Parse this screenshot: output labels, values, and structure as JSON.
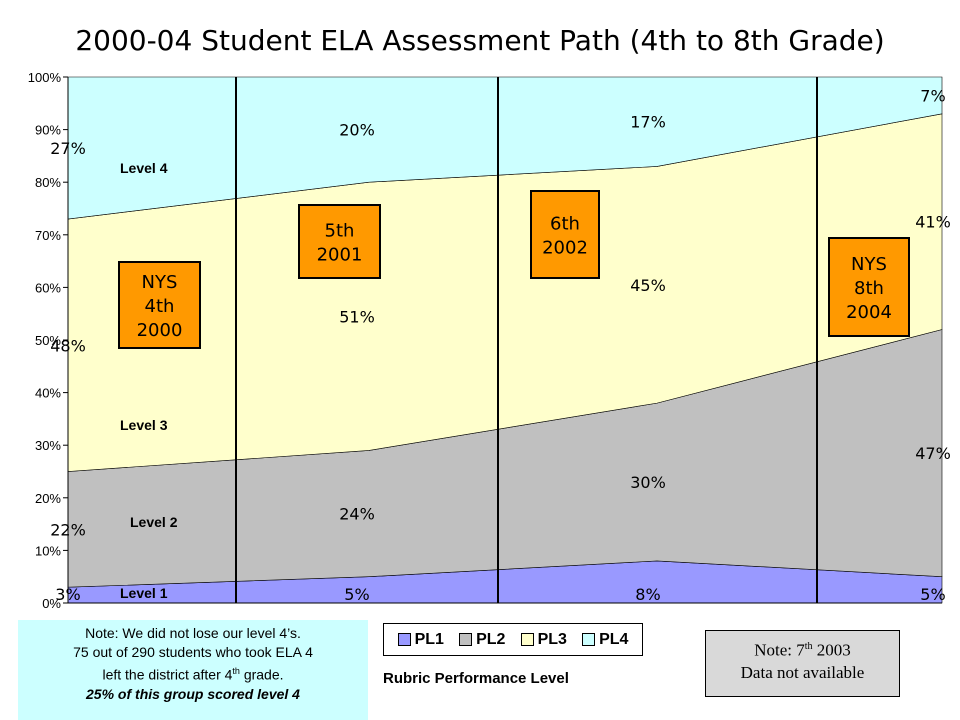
{
  "chart_data": {
    "type": "area",
    "title": "2000-04 Student ELA Assessment Path (4th to 8th Grade)",
    "stacked": true,
    "x": [
      "2000",
      "2001",
      "2002",
      "2004"
    ],
    "ylim": [
      0,
      100
    ],
    "yticks": [
      "0%",
      "10%",
      "20%",
      "30%",
      "40%",
      "50%",
      "60%",
      "70%",
      "80%",
      "90%",
      "100%"
    ],
    "series": [
      {
        "name": "PL1",
        "values": [
          3,
          5,
          8,
          5
        ],
        "labels": [
          "3%",
          "5%",
          "8%",
          "5%"
        ],
        "color": "#9999ff"
      },
      {
        "name": "PL2",
        "values": [
          22,
          24,
          30,
          47
        ],
        "labels": [
          "22%",
          "24%",
          "30%",
          "47%"
        ],
        "color": "#c0c0c0"
      },
      {
        "name": "PL3",
        "values": [
          48,
          51,
          45,
          41
        ],
        "labels": [
          "48%",
          "51%",
          "45%",
          "41%"
        ],
        "color": "#ffffcc"
      },
      {
        "name": "PL4",
        "values": [
          27,
          20,
          17,
          7
        ],
        "labels": [
          "27%",
          "20%",
          "17%",
          "7%"
        ],
        "color": "#ccffff"
      }
    ],
    "level_labels": [
      "Level 4",
      "Level 3",
      "Level 2",
      "Level 1"
    ],
    "grade_boxes": [
      {
        "lines": [
          "NYS",
          "4th",
          "2000"
        ]
      },
      {
        "lines": [
          "5th",
          "2001"
        ]
      },
      {
        "lines": [
          "6th",
          "2002"
        ]
      },
      {
        "lines": [
          "NYS",
          "8th",
          "2004"
        ]
      }
    ],
    "legend_position": "bottom"
  },
  "note_left": {
    "line1": "Note: We did not lose our level 4’s.",
    "line2": "75 out of 290 students who took ELA 4",
    "line3_pre": "left the district after 4",
    "line3_sup": "th",
    "line3_post": " grade.",
    "line4": "25% of this group scored level 4"
  },
  "legend_title": "Rubric Performance Level",
  "note_right": {
    "line1_pre": "Note: 7",
    "line1_sup": "th",
    "line1_post": " 2003",
    "line2": "Data not available"
  }
}
